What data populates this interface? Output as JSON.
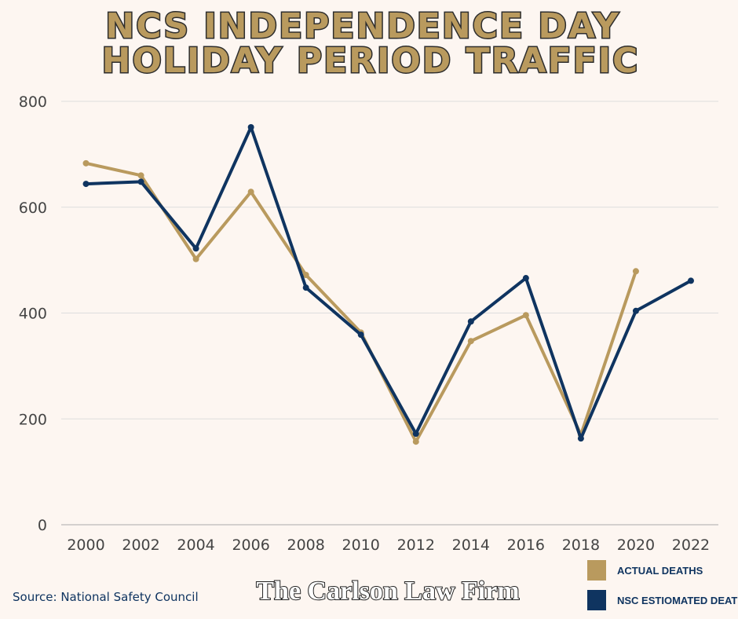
{
  "chart_data": {
    "type": "line",
    "title": [
      "NCS INDEPENDENCE DAY",
      "HOLIDAY PERIOD TRAFFIC"
    ],
    "x": [
      2000,
      2002,
      2004,
      2006,
      2008,
      2010,
      2012,
      2014,
      2016,
      2018,
      2020,
      2022
    ],
    "series": [
      {
        "name": "ACTUAL DEATHS",
        "color": "#b99a5e",
        "values": [
          683,
          660,
          502,
          629,
          472,
          363,
          157,
          347,
          396,
          170,
          479,
          null
        ]
      },
      {
        "name": "NSC ESTIOMATED DEATHS",
        "color": "#0f3460",
        "values": [
          644,
          648,
          522,
          751,
          448,
          359,
          172,
          384,
          466,
          163,
          404,
          461
        ]
      }
    ],
    "xlim": [
      1999.1,
      2023
    ],
    "xticks": [
      2000,
      2002,
      2004,
      2006,
      2008,
      2010,
      2012,
      2014,
      2016,
      2018,
      2020,
      2022
    ],
    "ylim": [
      0,
      800
    ],
    "yticks": [
      0,
      200,
      400,
      600,
      800
    ],
    "grid": true,
    "source": "Source: National Safety Council",
    "brand": "The Carlson Law Firm"
  }
}
